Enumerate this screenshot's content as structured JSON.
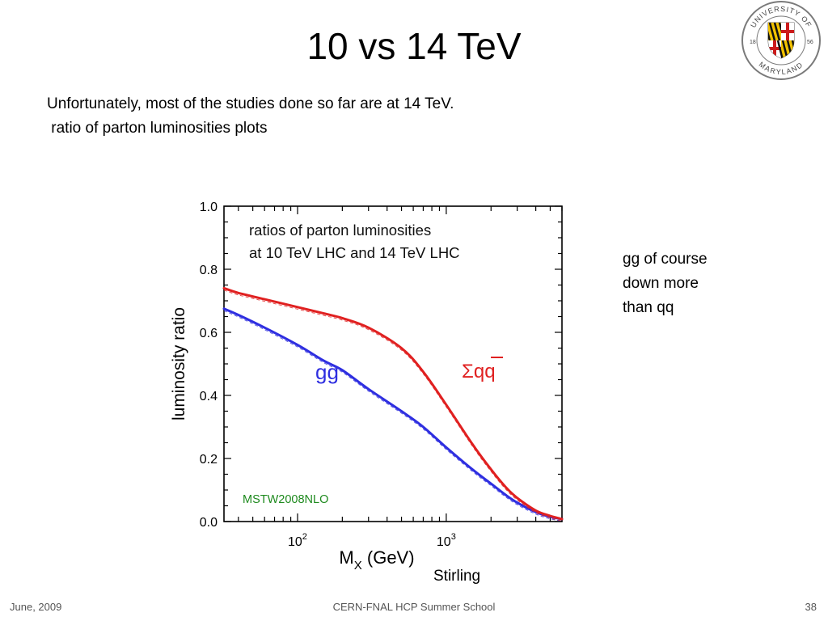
{
  "slide": {
    "title": "10 vs 14 TeV",
    "bullets": [
      "Unfortunately, most of the studies done so far are at 14 TeV.",
      " ratio of parton luminosities plots"
    ],
    "note_lines": [
      "gg of course",
      "down more",
      "than qq"
    ],
    "credit": "Stirling",
    "footer": {
      "date": "June, 2009",
      "event": "CERN-FNAL HCP Summer School",
      "page": "38"
    },
    "logo": {
      "text": "UNIVERSITY OF MARYLAND",
      "year_left": "18",
      "year_right": "56"
    }
  },
  "chart_data": {
    "type": "line",
    "title_lines": [
      "ratios of parton luminosities",
      "at 10 TeV LHC and 14 TeV LHC"
    ],
    "xlabel_main": "M",
    "xlabel_sub": "X",
    "xlabel_unit": " (GeV)",
    "ylabel": "luminosity ratio",
    "xscale": "log",
    "xlim": [
      32,
      6000
    ],
    "ylim": [
      0.0,
      1.0
    ],
    "yticks": [
      "0.0",
      "0.2",
      "0.4",
      "0.6",
      "0.8",
      "1.0"
    ],
    "xticks": [
      {
        "value": 100,
        "base": "10",
        "exp": "2"
      },
      {
        "value": 1000,
        "base": "10",
        "exp": "3"
      }
    ],
    "annotation": "MSTW2008NLO",
    "series": [
      {
        "name": "gg",
        "label_base": "gg",
        "color": "#2e2ee0",
        "x": [
          32,
          40,
          60,
          100,
          150,
          200,
          300,
          500,
          700,
          1000,
          1500,
          2000,
          2500,
          3000,
          4000,
          5000,
          6000
        ],
        "y": [
          0.675,
          0.655,
          0.615,
          0.56,
          0.51,
          0.48,
          0.42,
          0.35,
          0.3,
          0.235,
          0.165,
          0.12,
          0.085,
          0.06,
          0.03,
          0.015,
          0.008
        ]
      },
      {
        "name": "Σqq̄",
        "label_sigma": "Σ",
        "label_base": "qq",
        "color": "#e02020",
        "x": [
          32,
          40,
          60,
          100,
          150,
          200,
          300,
          500,
          700,
          1000,
          1500,
          2000,
          2500,
          3000,
          4000,
          5000,
          6000
        ],
        "y": [
          0.74,
          0.725,
          0.705,
          0.68,
          0.66,
          0.645,
          0.615,
          0.55,
          0.475,
          0.37,
          0.245,
          0.165,
          0.11,
          0.075,
          0.035,
          0.018,
          0.008
        ]
      }
    ]
  }
}
